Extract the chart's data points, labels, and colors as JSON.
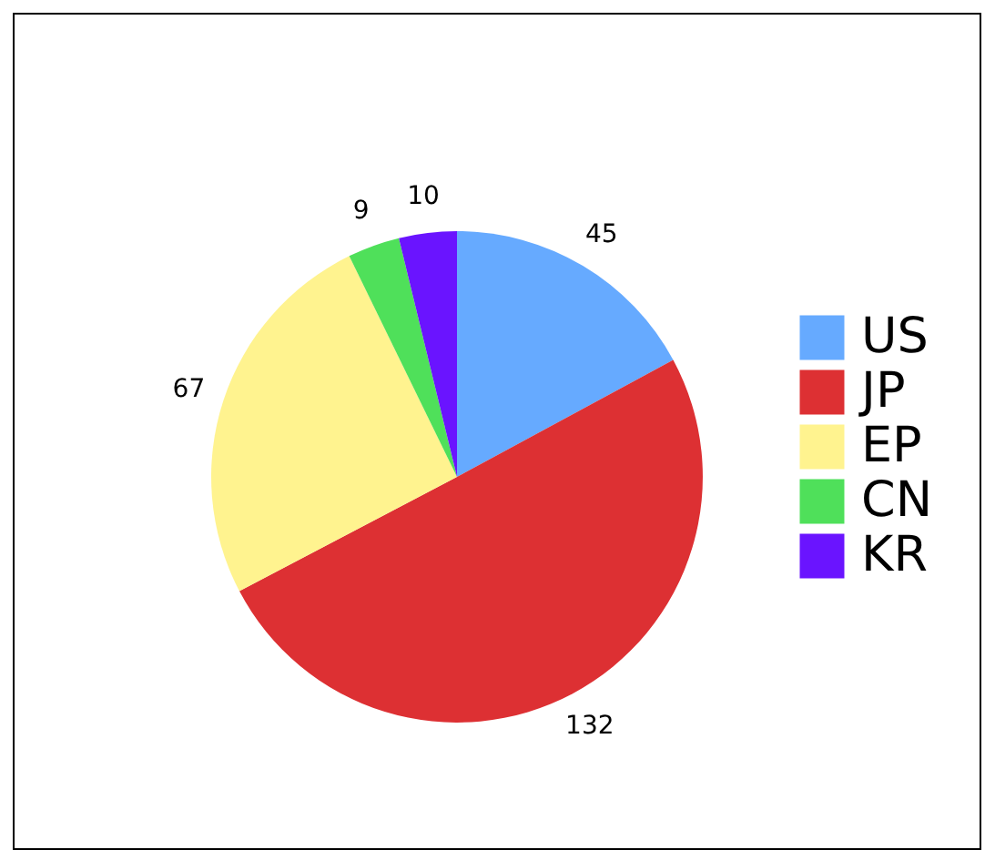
{
  "chart_data": {
    "type": "pie",
    "categories": [
      "US",
      "JP",
      "EP",
      "CN",
      "KR"
    ],
    "values": [
      45,
      132,
      67,
      9,
      10
    ],
    "colors": [
      "#66aaff",
      "#dd3033",
      "#fff38f",
      "#4fe05a",
      "#6a14ff"
    ],
    "data_labels": true,
    "legend": "right"
  }
}
